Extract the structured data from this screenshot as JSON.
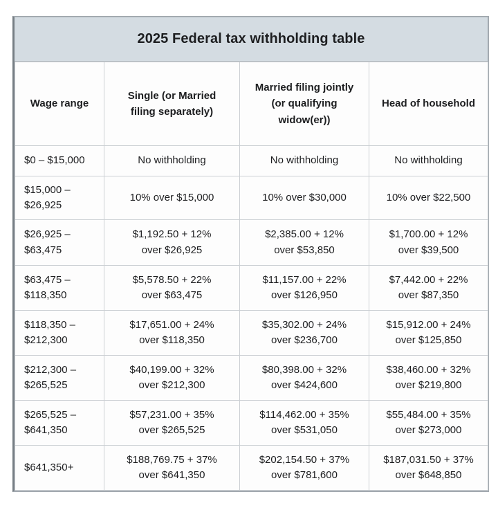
{
  "header": {
    "title": "2025 Federal tax withholding table"
  },
  "colors": {
    "title_band_bg": "#d4dce2",
    "outer_border": "#a3aab0",
    "outer_border_left": "#767e84",
    "inner_border": "#cbcfd3",
    "cell_bg": "#fdfdfd",
    "text": "#1d1e20"
  },
  "table": {
    "columns": [
      {
        "label": "Wage range"
      },
      {
        "label": "Single (or Married\nfiling separately)"
      },
      {
        "label": "Married filing jointly\n(or qualifying\nwidow(er))"
      },
      {
        "label": "Head of household"
      }
    ],
    "rows": [
      {
        "wage": "$0 – $15,000",
        "single": "No withholding",
        "married_jointly": "No withholding",
        "head_of_household": "No withholding"
      },
      {
        "wage": "$15,000 –\n$26,925",
        "single": "10% over $15,000",
        "married_jointly": "10% over $30,000",
        "head_of_household": "10% over $22,500"
      },
      {
        "wage": "$26,925 –\n$63,475",
        "single": "$1,192.50 + 12%\nover $26,925",
        "married_jointly": "$2,385.00 + 12%\nover $53,850",
        "head_of_household": "$1,700.00 + 12%\nover $39,500"
      },
      {
        "wage": "$63,475 –\n$118,350",
        "single": "$5,578.50 + 22%\nover $63,475",
        "married_jointly": "$11,157.00 + 22%\nover $126,950",
        "head_of_household": "$7,442.00 + 22%\nover $87,350"
      },
      {
        "wage": "$118,350 –\n$212,300",
        "single": "$17,651.00 + 24%\nover $118,350",
        "married_jointly": "$35,302.00 + 24%\nover $236,700",
        "head_of_household": "$15,912.00 + 24%\nover $125,850"
      },
      {
        "wage": "$212,300 –\n$265,525",
        "single": "$40,199.00 + 32%\nover $212,300",
        "married_jointly": "$80,398.00 + 32%\nover $424,600",
        "head_of_household": "$38,460.00 + 32%\nover $219,800"
      },
      {
        "wage": "$265,525 –\n$641,350",
        "single": "$57,231.00 + 35%\nover $265,525",
        "married_jointly": "$114,462.00 + 35%\nover $531,050",
        "head_of_household": "$55,484.00 + 35%\nover $273,000"
      },
      {
        "wage": "$641,350+",
        "single": "$188,769.75 + 37%\nover $641,350",
        "married_jointly": "$202,154.50 + 37%\nover $781,600",
        "head_of_household": "$187,031.50 + 37%\nover $648,850"
      }
    ]
  }
}
